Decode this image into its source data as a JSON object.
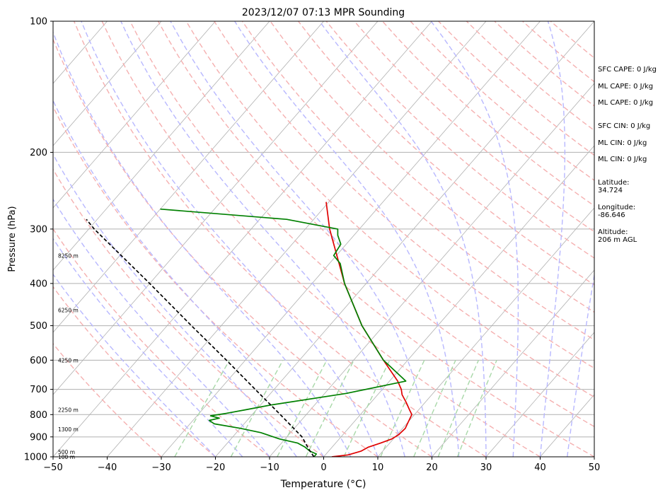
{
  "chart_data": {
    "type": "line",
    "title": "2023/12/07 07:13 MPR Sounding",
    "xlabel": "Temperature (°C)",
    "ylabel": "Pressure (hPa)",
    "xlim": [
      -50,
      50
    ],
    "ylim": [
      1000,
      100
    ],
    "y_scale": "log",
    "grid": true,
    "x_ticks": [
      "−50",
      "−40",
      "−30",
      "−20",
      "−10",
      "0",
      "10",
      "20",
      "30",
      "40",
      "50"
    ],
    "y_ticks": [
      {
        "p": 100,
        "label": "100"
      },
      {
        "p": 200,
        "label": "200"
      },
      {
        "p": 300,
        "label": "300"
      },
      {
        "p": 400,
        "label": "400"
      },
      {
        "p": 500,
        "label": "500"
      },
      {
        "p": 600,
        "label": "600"
      },
      {
        "p": 700,
        "label": "700"
      },
      {
        "p": 800,
        "label": "800"
      },
      {
        "p": 900,
        "label": "900"
      },
      {
        "p": 1000,
        "label": "1000"
      }
    ],
    "series": [
      {
        "color": "#e00000",
        "points": [
          [
            1000,
            1.5
          ],
          [
            990,
            4.2
          ],
          [
            970,
            6
          ],
          [
            950,
            6.7
          ],
          [
            930,
            8.3
          ],
          [
            910,
            9.7
          ],
          [
            890,
            10.3
          ],
          [
            860,
            10.5
          ],
          [
            830,
            10
          ],
          [
            800,
            9.5
          ],
          [
            780,
            8.3
          ],
          [
            750,
            6.5
          ],
          [
            720,
            4.5
          ],
          [
            700,
            3.5
          ],
          [
            670,
            1.5
          ],
          [
            600,
            -4.5
          ],
          [
            500,
            -14
          ],
          [
            400,
            -24
          ],
          [
            300,
            -35.5
          ],
          [
            260,
            -40.5
          ]
        ]
      },
      {
        "color": "#008000",
        "points": [
          [
            1000,
            -1.8
          ],
          [
            985,
            -1.8
          ],
          [
            970,
            -3.5
          ],
          [
            950,
            -5
          ],
          [
            930,
            -7
          ],
          [
            910,
            -11
          ],
          [
            880,
            -15.5
          ],
          [
            860,
            -20
          ],
          [
            840,
            -25.5
          ],
          [
            825,
            -27
          ],
          [
            815,
            -25.5
          ],
          [
            805,
            -27.5
          ],
          [
            795,
            -25
          ],
          [
            780,
            -22
          ],
          [
            760,
            -18
          ],
          [
            715,
            -6
          ],
          [
            670,
            3
          ],
          [
            600,
            -4.5
          ],
          [
            500,
            -14
          ],
          [
            400,
            -24
          ],
          [
            360,
            -28
          ],
          [
            345,
            -30.5
          ],
          [
            325,
            -31
          ],
          [
            310,
            -33
          ],
          [
            300,
            -34
          ],
          [
            285,
            -45
          ],
          [
            270,
            -70
          ]
        ]
      },
      {
        "color": "#000000",
        "dash": true,
        "points": [
          [
            1000,
            -1.8
          ],
          [
            960,
            -4
          ],
          [
            900,
            -7.2
          ],
          [
            800,
            -14.8
          ],
          [
            700,
            -23.5
          ],
          [
            600,
            -33.5
          ],
          [
            500,
            -45.5
          ],
          [
            400,
            -60
          ],
          [
            300,
            -79
          ],
          [
            285,
            -82
          ]
        ]
      }
    ],
    "altitude_labels": [
      {
        "p": 1000,
        "text": "100 m"
      },
      {
        "p": 975,
        "text": "500 m"
      },
      {
        "p": 865,
        "text": "1300 m"
      },
      {
        "p": 780,
        "text": "2250 m"
      },
      {
        "p": 600,
        "text": "4250 m"
      },
      {
        "p": 460,
        "text": "6250 m"
      },
      {
        "p": 345,
        "text": "8250 m"
      }
    ]
  },
  "indices": [
    "SFC CAPE: 0 J/kg",
    "ML CAPE: 0 J/kg",
    "ML CAPE: 0 J/kg",
    "SFC CIN: 0 J/kg",
    "ML CIN: 0 J/kg",
    "ML CIN: 0 J/kg"
  ],
  "location": {
    "latitude_label": "Latitude:",
    "latitude": "34.724",
    "longitude_label": "Longitude:",
    "longitude": "-86.646",
    "altitude_label": "Altitude:",
    "altitude": "206 m AGL"
  },
  "colors": {
    "temperature": "#e00000",
    "dewpoint": "#008000",
    "parcel": "#000000",
    "isotherm": "#b0b0b0",
    "dry_adiabat": "#f5b0b0",
    "moist_adiabat": "#b8b8ff",
    "mixing_ratio": "#a8d8a8"
  }
}
